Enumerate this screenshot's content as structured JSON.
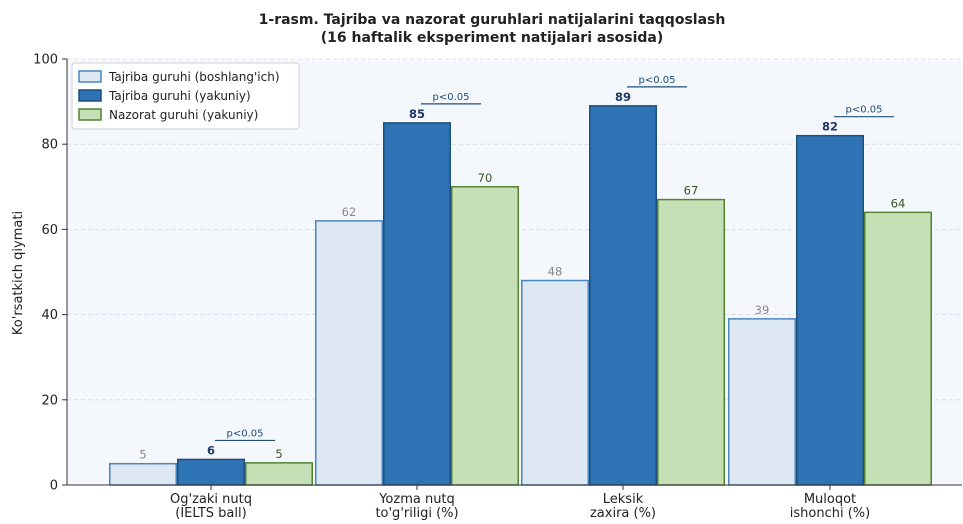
{
  "chart_data": {
    "type": "bar",
    "title_line1": "1-rasm. Tajriba va nazorat guruhlari natijalarini taqqoslash",
    "title_line2": "(16 haftalik eksperiment natijalari asosida)",
    "ylabel": "Ko'rsatkich qiymati",
    "xlabel": "",
    "ylim": [
      0,
      100
    ],
    "yticks": [
      0,
      20,
      40,
      60,
      80,
      100
    ],
    "grid": "horizontal dashed",
    "legend_position": "top-left",
    "categories": [
      [
        "Og'zaki nutq",
        "(IELTS ball)"
      ],
      [
        "Yozma nutq",
        "to'g'riligi (%)"
      ],
      [
        "Leksik",
        "zaxira (%)"
      ],
      [
        "Muloqot",
        "ishonchi (%)"
      ]
    ],
    "series": [
      {
        "name": "Tajriba guruhi (boshlang'ich)",
        "values": [
          5,
          62,
          48,
          39
        ],
        "labels": [
          "5",
          "62",
          "48",
          "39"
        ],
        "fill": "#dde8f2",
        "stroke": "#4a85c0",
        "label_color": "#888888",
        "label_bold": false
      },
      {
        "name": "Tajriba guruhi (yakuniy)",
        "values": [
          6,
          85,
          89,
          82
        ],
        "labels": [
          "6",
          "85",
          "89",
          "82"
        ],
        "fill": "#2e74b5",
        "stroke": "#1f4e79",
        "label_color": "#1f3864",
        "label_bold": true
      },
      {
        "name": "Nazorat guruhi (yakuniy)",
        "values": [
          5.2,
          70,
          67,
          64
        ],
        "labels": [
          "5",
          "70",
          "67",
          "64"
        ],
        "fill": "#c5e0b4",
        "stroke": "#548235",
        "label_color": "#375623",
        "label_bold": false
      }
    ],
    "significance": [
      {
        "category_index": 0,
        "text": "p<0.05"
      },
      {
        "category_index": 1,
        "text": "p<0.05"
      },
      {
        "category_index": 2,
        "text": "p<0.05"
      },
      {
        "category_index": 3,
        "text": "p<0.05"
      }
    ]
  }
}
